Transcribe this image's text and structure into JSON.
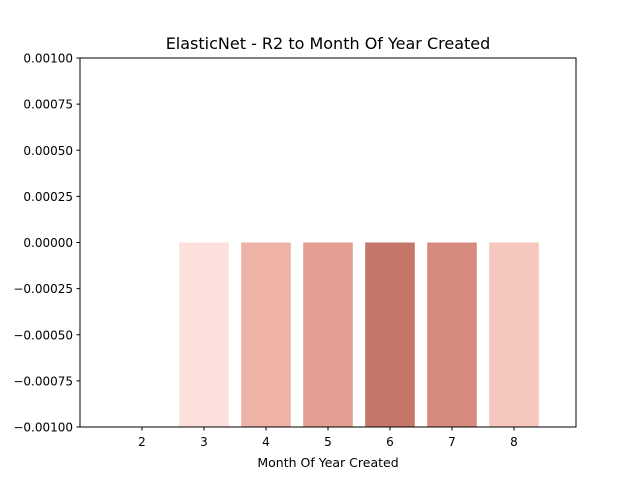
{
  "chart_data": {
    "type": "bar",
    "title": "ElasticNet - R2 to Month Of Year Created",
    "xlabel": "Month Of Year Created",
    "ylabel": "",
    "categories": [
      "2",
      "3",
      "4",
      "5",
      "6",
      "7",
      "8"
    ],
    "values": [
      0.0,
      0.0,
      0.0,
      0.0,
      0.0,
      0.0,
      0.0
    ],
    "bar_bottom": -0.001,
    "colors": [
      "#fbe2dd",
      "#fbe0db",
      "#efb2a7",
      "#e39d91",
      "#c67569",
      "#d58a7d",
      "#f6c7bf"
    ],
    "bar_visible": [
      false,
      true,
      true,
      true,
      true,
      true,
      true
    ],
    "ylim": [
      -0.001,
      0.001
    ],
    "yticks": [
      0.001,
      0.00075,
      0.0005,
      0.00025,
      0.0,
      -0.00025,
      -0.0005,
      -0.00075,
      -0.001
    ],
    "ytick_labels": [
      "0.00100",
      "0.00075",
      "0.00050",
      "0.00025",
      "0.00000",
      "−0.00025",
      "−0.00050",
      "−0.00075",
      "−0.00100"
    ],
    "grid": false,
    "legend": "none"
  }
}
